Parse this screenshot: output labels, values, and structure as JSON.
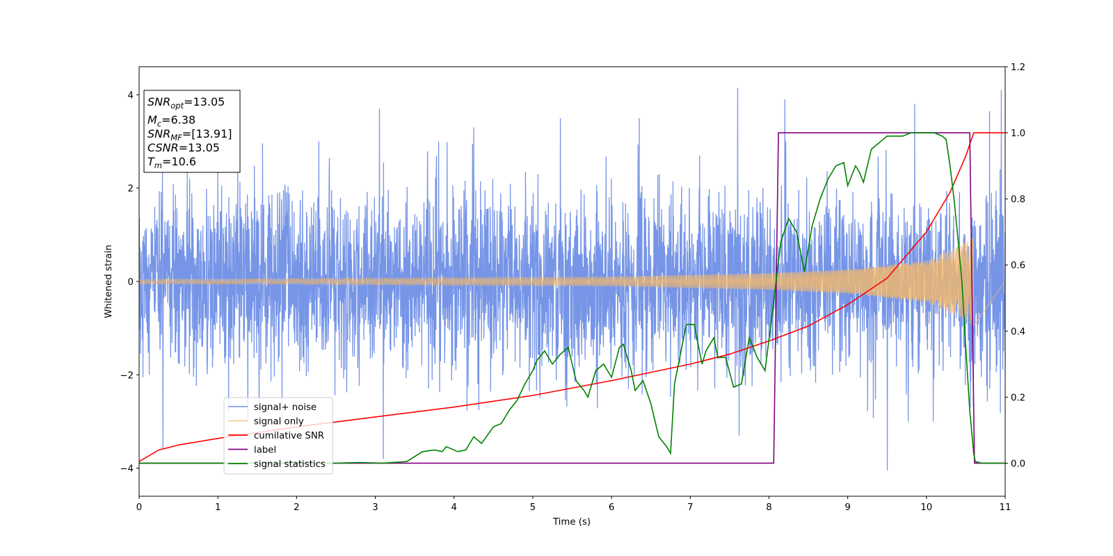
{
  "chart_data": {
    "type": "line",
    "xlabel": "Time (s)",
    "ylabel": "Whitened strain",
    "xlim": [
      0,
      11
    ],
    "ylim": [
      -4.6,
      4.6
    ],
    "y2lim": [
      -0.1,
      1.2
    ],
    "xticks": [
      "0",
      "1",
      "2",
      "3",
      "4",
      "5",
      "6",
      "7",
      "8",
      "9",
      "10",
      "11"
    ],
    "yticks": [
      "−4",
      "−2",
      "0",
      "2",
      "4"
    ],
    "y2ticks": [
      "0.0",
      "0.2",
      "0.4",
      "0.6",
      "0.8",
      "1.0",
      "1.2"
    ],
    "legend_position": "lower-left",
    "grid": false,
    "info_box": {
      "position": "upper-left",
      "lines": [
        {
          "base": "SNR",
          "sub": "opt",
          "text": "=13.05"
        },
        {
          "base": "M",
          "sub": "c",
          "text": "=6.38"
        },
        {
          "base": "SNR",
          "sub": "MF",
          "text": "=[13.91]"
        },
        {
          "base": "CSNR",
          "sub": "",
          "text": "=13.05"
        },
        {
          "base": "T",
          "sub": "m",
          "text": "=10.6"
        }
      ]
    },
    "series": [
      {
        "name": "signal+ noise",
        "axis": "left",
        "color": "#6f8fe6",
        "kind": "noise",
        "std": 0.95,
        "x_range": [
          0,
          11
        ],
        "notable_peaks": [
          [
            1.25,
            2.6
          ],
          [
            3.05,
            3.7
          ],
          [
            4.25,
            3.3
          ],
          [
            5.35,
            3.5
          ],
          [
            6.35,
            3.5
          ],
          [
            7.6,
            4.15
          ],
          [
            7.62,
            -3.3
          ],
          [
            8.2,
            3.9
          ],
          [
            9.5,
            -4.05
          ],
          [
            9.85,
            3.8
          ],
          [
            10.8,
            3.65
          ],
          [
            10.95,
            4.1
          ],
          [
            0.3,
            -3.6
          ],
          [
            3.1,
            -3.8
          ]
        ]
      },
      {
        "name": "signal only",
        "axis": "left",
        "color": "#f4b86a",
        "kind": "chirp",
        "x_range": [
          0,
          10.6
        ],
        "amplitude_envelope": [
          [
            0,
            0.05
          ],
          [
            2,
            0.06
          ],
          [
            4,
            0.08
          ],
          [
            6,
            0.1
          ],
          [
            8,
            0.18
          ],
          [
            9,
            0.26
          ],
          [
            10,
            0.45
          ],
          [
            10.4,
            0.75
          ],
          [
            10.6,
            0.95
          ]
        ]
      },
      {
        "name": "cumilative SNR",
        "axis": "right",
        "color": "#ff0000",
        "x": [
          0,
          0.25,
          0.5,
          1,
          2,
          3,
          4,
          5,
          6,
          7,
          7.5,
          8,
          8.5,
          9,
          9.5,
          10,
          10.3,
          10.5,
          10.6,
          10.62,
          11
        ],
        "values": [
          0.005,
          0.04,
          0.055,
          0.075,
          0.11,
          0.14,
          0.17,
          0.205,
          0.25,
          0.3,
          0.33,
          0.37,
          0.415,
          0.48,
          0.56,
          0.7,
          0.82,
          0.93,
          1.0,
          1.0,
          1.0
        ]
      },
      {
        "name": "label",
        "axis": "right",
        "color": "#800080",
        "x": [
          0,
          8.06,
          8.12,
          10.55,
          10.61,
          11
        ],
        "values": [
          0.0,
          0.0,
          1.0,
          1.0,
          0.0,
          0.0
        ]
      },
      {
        "name": "signal statistics",
        "axis": "right",
        "color": "#008000",
        "x": [
          0,
          2.5,
          2.8,
          3.1,
          3.4,
          3.6,
          3.75,
          3.85,
          3.9,
          4.05,
          4.15,
          4.25,
          4.35,
          4.5,
          4.6,
          4.7,
          4.8,
          4.9,
          5.0,
          5.05,
          5.15,
          5.25,
          5.35,
          5.45,
          5.55,
          5.65,
          5.7,
          5.8,
          5.9,
          6.0,
          6.1,
          6.15,
          6.25,
          6.3,
          6.4,
          6.5,
          6.6,
          6.7,
          6.75,
          6.8,
          6.85,
          6.95,
          7.05,
          7.15,
          7.2,
          7.3,
          7.35,
          7.45,
          7.55,
          7.65,
          7.75,
          7.85,
          7.95,
          8.05,
          8.15,
          8.25,
          8.35,
          8.45,
          8.55,
          8.65,
          8.75,
          8.85,
          8.95,
          9.0,
          9.1,
          9.15,
          9.2,
          9.3,
          9.4,
          9.5,
          9.6,
          9.7,
          9.8,
          9.9,
          10.0,
          10.1,
          10.2,
          10.25,
          10.3,
          10.35,
          10.4,
          10.45,
          10.5,
          10.55,
          10.6,
          10.62,
          10.7,
          10.8,
          10.9,
          11
        ],
        "values": [
          0.0,
          0.0,
          0.002,
          0.0,
          0.005,
          0.035,
          0.04,
          0.035,
          0.05,
          0.035,
          0.04,
          0.08,
          0.06,
          0.11,
          0.12,
          0.16,
          0.19,
          0.24,
          0.28,
          0.31,
          0.34,
          0.3,
          0.33,
          0.35,
          0.25,
          0.22,
          0.2,
          0.28,
          0.3,
          0.26,
          0.35,
          0.36,
          0.28,
          0.22,
          0.25,
          0.18,
          0.08,
          0.05,
          0.03,
          0.24,
          0.3,
          0.42,
          0.42,
          0.3,
          0.34,
          0.38,
          0.32,
          0.32,
          0.23,
          0.24,
          0.38,
          0.32,
          0.28,
          0.47,
          0.67,
          0.74,
          0.7,
          0.58,
          0.72,
          0.8,
          0.86,
          0.9,
          0.91,
          0.84,
          0.9,
          0.88,
          0.85,
          0.95,
          0.97,
          0.99,
          0.99,
          0.99,
          1.0,
          1.0,
          1.0,
          1.0,
          0.99,
          0.98,
          0.9,
          0.8,
          0.68,
          0.55,
          0.35,
          0.16,
          0.03,
          0.005,
          0.0,
          0.0,
          0.0,
          0.0
        ]
      }
    ]
  }
}
